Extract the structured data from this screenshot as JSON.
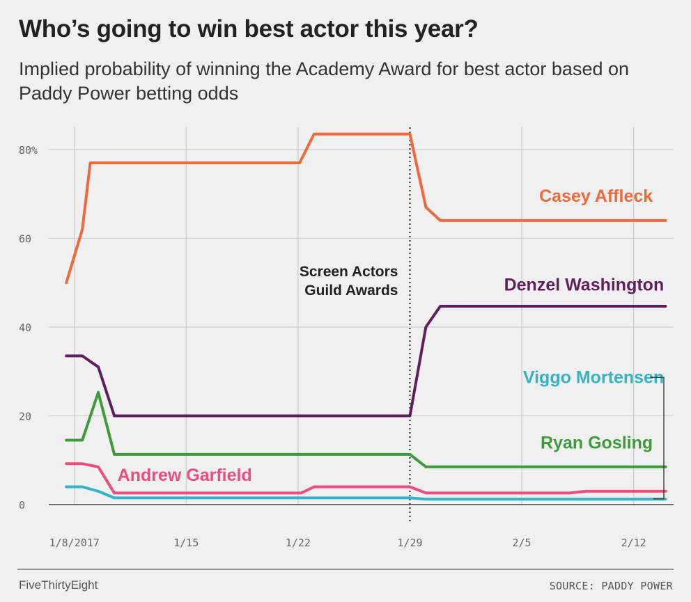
{
  "title": "Who’s going to win best actor this year?",
  "subtitle": "Implied probability of winning the Academy Award for best actor based on Paddy Power betting odds",
  "brand": "FiveThirtyEight",
  "source": "SOURCE: PADDY POWER",
  "colors": {
    "background": "#f0f0f0",
    "grid": "#cfcfcf",
    "casey": "#ed6a3d",
    "denzel": "#5e1f5c",
    "viggo": "#35b5c4",
    "gosling": "#3f9a3d",
    "garfield": "#ec4d7f"
  },
  "chart_data": {
    "type": "line",
    "title": "Who’s going to win best actor this year?",
    "subtitle": "Implied probability of winning the Academy Award for best actor based on Paddy Power betting odds",
    "xlabel": "",
    "ylabel": "",
    "x_unit": "days",
    "x_ticks": [
      {
        "value": 8,
        "label": "1/8/2017"
      },
      {
        "value": 15,
        "label": "1/15"
      },
      {
        "value": 22,
        "label": "1/22"
      },
      {
        "value": 29,
        "label": "1/29"
      },
      {
        "value": 36,
        "label": "2/5"
      },
      {
        "value": 43,
        "label": "2/12"
      }
    ],
    "y_ticks": [
      {
        "value": 0,
        "label": "0"
      },
      {
        "value": 20,
        "label": "20"
      },
      {
        "value": 40,
        "label": "40"
      },
      {
        "value": 60,
        "label": "60"
      },
      {
        "value": 80,
        "label": "80%"
      }
    ],
    "xlim": [
      6.4,
      45.5
    ],
    "ylim": [
      0,
      85
    ],
    "grid": true,
    "annotation": {
      "x": 29,
      "lines": [
        "Screen Actors",
        "Guild Awards"
      ]
    },
    "series": [
      {
        "name": "Casey Affleck",
        "color": "#ed6a3d",
        "points": [
          [
            7.5,
            50
          ],
          [
            8.5,
            62
          ],
          [
            9,
            77
          ],
          [
            22.1,
            77
          ],
          [
            23,
            83.5
          ],
          [
            29,
            83.5
          ],
          [
            30,
            67
          ],
          [
            30.9,
            64
          ],
          [
            45,
            64
          ]
        ]
      },
      {
        "name": "Denzel Washington",
        "color": "#5e1f5c",
        "points": [
          [
            7.5,
            33.5
          ],
          [
            8.5,
            33.5
          ],
          [
            9.5,
            31
          ],
          [
            10.5,
            20
          ],
          [
            29,
            20
          ],
          [
            30,
            40
          ],
          [
            30.9,
            44.7
          ],
          [
            45,
            44.7
          ]
        ]
      },
      {
        "name": "Viggo Mortensen",
        "color": "#35b5c4",
        "points": [
          [
            7.5,
            4
          ],
          [
            8.5,
            4
          ],
          [
            9.5,
            3
          ],
          [
            10.5,
            1.5
          ],
          [
            29,
            1.5
          ],
          [
            30,
            1.2
          ],
          [
            45,
            1.2
          ]
        ]
      },
      {
        "name": "Ryan Gosling",
        "color": "#3f9a3d",
        "points": [
          [
            7.5,
            14.5
          ],
          [
            8.5,
            14.5
          ],
          [
            9.5,
            25.3
          ],
          [
            10.5,
            11.3
          ],
          [
            29,
            11.3
          ],
          [
            30,
            8.5
          ],
          [
            45,
            8.5
          ]
        ]
      },
      {
        "name": "Andrew Garfield",
        "color": "#ec4d7f",
        "points": [
          [
            7.5,
            9.2
          ],
          [
            8.5,
            9.2
          ],
          [
            9.5,
            8.5
          ],
          [
            10.5,
            2.6
          ],
          [
            22.2,
            2.6
          ],
          [
            23,
            4
          ],
          [
            29,
            4
          ],
          [
            30,
            2.6
          ],
          [
            39,
            2.6
          ],
          [
            40,
            3
          ],
          [
            45,
            3
          ]
        ]
      }
    ],
    "labels": [
      {
        "series": "Casey Affleck",
        "text": "Casey Affleck",
        "x": 44.2,
        "y": 68.2,
        "anchor": "end"
      },
      {
        "series": "Denzel Washington",
        "text": "Denzel Washington",
        "x": 44.9,
        "y": 48.2,
        "anchor": "end"
      },
      {
        "series": "Viggo Mortensen",
        "text": "Viggo Mortensen",
        "x": 44.9,
        "y": 27.4,
        "anchor": "end"
      },
      {
        "series": "Ryan Gosling",
        "text": "Ryan Gosling",
        "x": 44.2,
        "y": 12.6,
        "anchor": "end"
      },
      {
        "series": "Andrew Garfield",
        "text": "Andrew Garfield",
        "x": 10.7,
        "y": 5.3,
        "anchor": "start"
      }
    ],
    "bracket": {
      "series": "Viggo Mortensen",
      "y_top": 27.4,
      "y_bottom": 1.3
    }
  }
}
